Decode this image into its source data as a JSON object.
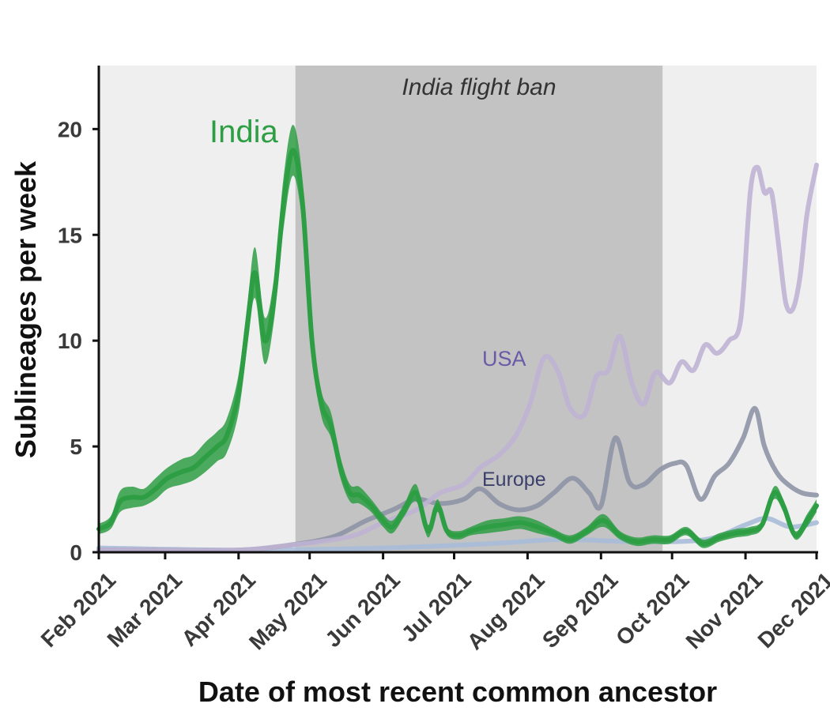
{
  "chart_data": {
    "type": "line",
    "title": "",
    "xlabel": "Date of most recent common ancestor",
    "ylabel": "Sublineages per week",
    "ylim": [
      0,
      23
    ],
    "yticks": [
      0,
      5,
      10,
      15,
      20
    ],
    "xlim": [
      "2021-02-01",
      "2021-12-01"
    ],
    "xticks": [
      "2021-02-01",
      "2021-03-01",
      "2021-04-01",
      "2021-05-01",
      "2021-06-01",
      "2021-07-01",
      "2021-08-01",
      "2021-09-01",
      "2021-10-01",
      "2021-11-01",
      "2021-12-01"
    ],
    "xtick_labels": [
      "Feb 2021",
      "Mar 2021",
      "Apr 2021",
      "May 2021",
      "Jun 2021",
      "Jul 2021",
      "Aug 2021",
      "Sep 2021",
      "Oct 2021",
      "Nov 2021",
      "Dec 2021"
    ],
    "grid": false,
    "background_color": "#efefef",
    "shaded_region": {
      "label": "India flight ban",
      "start": "2021-04-25",
      "end": "2021-09-27",
      "color": "#c3c3c3"
    },
    "series": [
      {
        "name": "India",
        "color": "#2e9e44",
        "band": true,
        "x": [
          "2021-02-01",
          "2021-02-06",
          "2021-02-10",
          "2021-02-15",
          "2021-02-20",
          "2021-02-25",
          "2021-03-02",
          "2021-03-08",
          "2021-03-13",
          "2021-03-18",
          "2021-03-23",
          "2021-03-27",
          "2021-04-01",
          "2021-04-05",
          "2021-04-08",
          "2021-04-12",
          "2021-04-16",
          "2021-04-20",
          "2021-04-24",
          "2021-04-28",
          "2021-05-02",
          "2021-05-06",
          "2021-05-10",
          "2021-05-14",
          "2021-05-18",
          "2021-05-22",
          "2021-05-27",
          "2021-06-01",
          "2021-06-05",
          "2021-06-10",
          "2021-06-15",
          "2021-06-20",
          "2021-06-24",
          "2021-06-28",
          "2021-07-03",
          "2021-07-08",
          "2021-07-15",
          "2021-07-22",
          "2021-07-29",
          "2021-08-05",
          "2021-08-12",
          "2021-08-19",
          "2021-08-26",
          "2021-09-02",
          "2021-09-09",
          "2021-09-16",
          "2021-09-23",
          "2021-09-30",
          "2021-10-07",
          "2021-10-14",
          "2021-10-21",
          "2021-10-28",
          "2021-11-03",
          "2021-11-08",
          "2021-11-13",
          "2021-11-17",
          "2021-11-22",
          "2021-11-27",
          "2021-12-01"
        ],
        "values": [
          1.1,
          1.4,
          2.4,
          2.6,
          2.6,
          3.0,
          3.5,
          3.8,
          4.0,
          4.5,
          5.0,
          5.5,
          7.5,
          11.0,
          13.2,
          10.0,
          12.0,
          16.5,
          19.0,
          16.5,
          10.0,
          7.0,
          6.0,
          4.0,
          2.8,
          2.7,
          2.2,
          1.5,
          1.2,
          2.0,
          2.8,
          1.0,
          2.2,
          1.0,
          0.8,
          1.0,
          1.2,
          1.3,
          1.4,
          1.2,
          0.9,
          0.6,
          1.0,
          1.5,
          0.8,
          0.5,
          0.6,
          0.6,
          1.0,
          0.4,
          0.7,
          0.9,
          1.0,
          1.3,
          2.8,
          2.2,
          0.8,
          1.5,
          2.2
        ],
        "band_halfwidth": [
          0.25,
          0.3,
          0.5,
          0.5,
          0.4,
          0.5,
          0.5,
          0.6,
          0.6,
          0.7,
          0.7,
          0.8,
          0.9,
          1.0,
          1.2,
          1.1,
          1.0,
          1.2,
          1.2,
          1.1,
          0.8,
          0.6,
          0.6,
          0.5,
          0.4,
          0.4,
          0.3,
          0.3,
          0.3,
          0.3,
          0.4,
          0.3,
          0.3,
          0.2,
          0.2,
          0.2,
          0.3,
          0.3,
          0.3,
          0.3,
          0.2,
          0.2,
          0.2,
          0.3,
          0.2,
          0.2,
          0.2,
          0.2,
          0.2,
          0.2,
          0.2,
          0.2,
          0.2,
          0.2,
          0.3,
          0.3,
          0.2,
          0.3,
          0.3
        ]
      },
      {
        "name": "USA",
        "color": "#bfb3d3",
        "x": [
          "2021-02-01",
          "2021-03-01",
          "2021-04-01",
          "2021-04-20",
          "2021-05-05",
          "2021-05-20",
          "2021-06-01",
          "2021-06-15",
          "2021-06-25",
          "2021-07-05",
          "2021-07-12",
          "2021-07-20",
          "2021-07-27",
          "2021-08-02",
          "2021-08-08",
          "2021-08-14",
          "2021-08-19",
          "2021-08-25",
          "2021-08-30",
          "2021-09-04",
          "2021-09-09",
          "2021-09-14",
          "2021-09-19",
          "2021-09-24",
          "2021-09-30",
          "2021-10-05",
          "2021-10-10",
          "2021-10-15",
          "2021-10-20",
          "2021-10-25",
          "2021-10-30",
          "2021-11-03",
          "2021-11-06",
          "2021-11-09",
          "2021-11-12",
          "2021-11-15",
          "2021-11-18",
          "2021-11-21",
          "2021-11-24",
          "2021-11-27",
          "2021-12-01"
        ],
        "values": [
          0.1,
          0.1,
          0.1,
          0.3,
          0.5,
          0.8,
          1.4,
          2.0,
          2.8,
          3.2,
          4.0,
          4.6,
          5.5,
          7.0,
          9.2,
          8.5,
          6.8,
          6.5,
          8.3,
          8.6,
          10.2,
          8.0,
          7.0,
          8.5,
          8.0,
          9.0,
          8.6,
          9.8,
          9.4,
          10.0,
          11.0,
          17.0,
          18.2,
          17.0,
          17.0,
          14.5,
          11.8,
          11.5,
          13.0,
          16.0,
          18.3
        ]
      },
      {
        "name": "Europe",
        "color": "#8e95a6",
        "x": [
          "2021-02-01",
          "2021-03-01",
          "2021-04-01",
          "2021-04-20",
          "2021-05-10",
          "2021-05-25",
          "2021-06-05",
          "2021-06-15",
          "2021-06-25",
          "2021-07-05",
          "2021-07-12",
          "2021-07-20",
          "2021-07-28",
          "2021-08-05",
          "2021-08-12",
          "2021-08-20",
          "2021-08-27",
          "2021-09-01",
          "2021-09-07",
          "2021-09-13",
          "2021-09-19",
          "2021-09-26",
          "2021-10-02",
          "2021-10-07",
          "2021-10-13",
          "2021-10-19",
          "2021-10-25",
          "2021-10-31",
          "2021-11-05",
          "2021-11-09",
          "2021-11-14",
          "2021-11-19",
          "2021-11-25",
          "2021-12-01"
        ],
        "values": [
          0.1,
          0.1,
          0.1,
          0.3,
          0.7,
          1.5,
          2.0,
          2.5,
          2.3,
          2.5,
          3.0,
          2.3,
          2.0,
          2.2,
          2.8,
          3.5,
          2.8,
          2.2,
          5.4,
          3.3,
          3.2,
          3.9,
          4.2,
          4.1,
          2.5,
          3.6,
          4.2,
          5.4,
          6.8,
          5.0,
          3.8,
          3.2,
          2.8,
          2.7
        ]
      },
      {
        "name": "",
        "color": "#a9bdd8",
        "x": [
          "2021-02-01",
          "2021-04-01",
          "2021-06-01",
          "2021-07-15",
          "2021-08-15",
          "2021-09-15",
          "2021-10-15",
          "2021-11-01",
          "2021-11-10",
          "2021-11-20",
          "2021-12-01"
        ],
        "values": [
          0.2,
          0.1,
          0.2,
          0.4,
          0.6,
          0.5,
          0.6,
          1.3,
          1.6,
          1.2,
          1.4
        ]
      }
    ],
    "annotations": [
      {
        "text": "India",
        "series": "India",
        "color": "#2e9e44"
      },
      {
        "text": "USA",
        "series": "USA",
        "color": "#6a5aa8"
      },
      {
        "text": "Europe",
        "series": "Europe",
        "color": "#3a3f6b"
      }
    ]
  }
}
